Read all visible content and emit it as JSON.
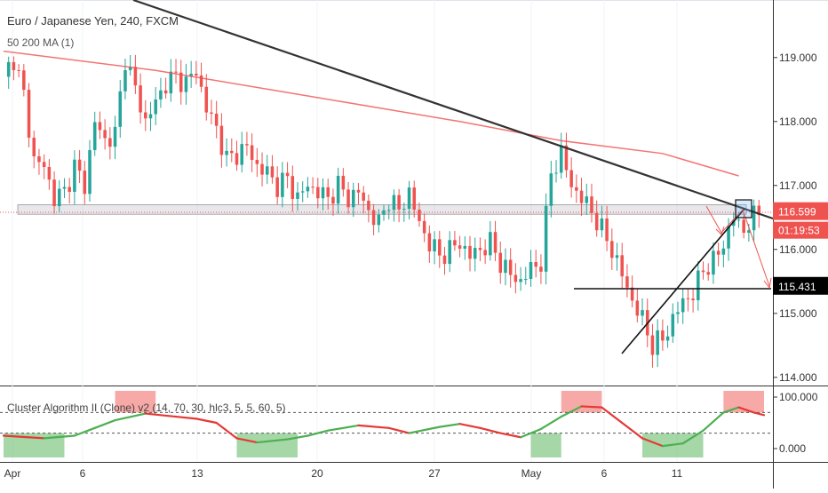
{
  "chart_data": {
    "type": "candlestick",
    "title": "Euro / Japanese Yen, 240, FXCM",
    "overlay_label": "50 200 MA (1)",
    "indicator_label": "Cluster Algorithm II (Clone) v2 (14, 70, 30, hlc3, 5, 5, 60, 5)",
    "y_ticks": [
      "119.000",
      "118.000",
      "117.000",
      "116.000",
      "115.000",
      "114.000"
    ],
    "y_range": [
      113.9,
      119.9
    ],
    "x_ticks": [
      "Apr",
      "6",
      "13",
      "20",
      "27",
      "May",
      "6",
      "11"
    ],
    "price_badges": [
      {
        "price": 116.599,
        "label": "116.599",
        "color": "#ef5350"
      },
      {
        "label": "01:19:53",
        "color": "#ef5350"
      },
      {
        "price": 115.431,
        "label": "115.431",
        "color": "#000000"
      }
    ],
    "indicator_y_ticks": [
      "100.000",
      "0.000"
    ],
    "indicator_levels": [
      70,
      30
    ],
    "colors": {
      "up": "#26a69a",
      "down": "#ef5350",
      "ma": "#ef5350",
      "trend": "#333333",
      "osc_up": "#4caf50",
      "osc_down": "#e53935"
    },
    "close_path": [
      [
        0,
        118.7
      ],
      [
        2,
        119.0
      ],
      [
        4,
        118.4
      ],
      [
        6,
        117.4
      ],
      [
        8,
        117.3
      ],
      [
        10,
        116.8
      ],
      [
        12,
        116.9
      ],
      [
        14,
        117.3
      ],
      [
        16,
        117.0
      ],
      [
        18,
        118.0
      ],
      [
        20,
        117.7
      ],
      [
        22,
        117.8
      ],
      [
        24,
        119.0
      ],
      [
        26,
        118.5
      ],
      [
        28,
        118.0
      ],
      [
        30,
        118.3
      ],
      [
        32,
        118.6
      ],
      [
        34,
        118.7
      ],
      [
        36,
        118.6
      ],
      [
        38,
        118.8
      ],
      [
        40,
        118.2
      ],
      [
        42,
        117.9
      ],
      [
        44,
        117.4
      ],
      [
        46,
        117.5
      ],
      [
        48,
        117.6
      ],
      [
        50,
        117.3
      ],
      [
        52,
        117.2
      ],
      [
        54,
        117.0
      ],
      [
        56,
        117.1
      ],
      [
        58,
        116.8
      ],
      [
        60,
        117.0
      ],
      [
        62,
        116.9
      ],
      [
        64,
        116.8
      ],
      [
        66,
        117.0
      ],
      [
        68,
        116.8
      ],
      [
        70,
        116.9
      ],
      [
        72,
        116.6
      ],
      [
        74,
        116.4
      ],
      [
        76,
        116.8
      ],
      [
        78,
        116.6
      ],
      [
        80,
        116.9
      ],
      [
        82,
        116.4
      ],
      [
        84,
        116.1
      ],
      [
        86,
        115.9
      ],
      [
        88,
        116.0
      ],
      [
        90,
        116.1
      ],
      [
        92,
        115.9
      ],
      [
        94,
        116.0
      ],
      [
        96,
        116.1
      ],
      [
        98,
        115.8
      ],
      [
        100,
        115.6
      ],
      [
        102,
        115.5
      ],
      [
        104,
        115.7
      ],
      [
        106,
        115.8
      ],
      [
        108,
        117.2
      ],
      [
        110,
        117.5
      ],
      [
        112,
        117.0
      ],
      [
        114,
        116.8
      ],
      [
        116,
        116.6
      ],
      [
        118,
        116.3
      ],
      [
        120,
        116.0
      ],
      [
        122,
        115.6
      ],
      [
        124,
        115.2
      ],
      [
        126,
        114.9
      ],
      [
        128,
        114.5
      ],
      [
        130,
        114.6
      ],
      [
        132,
        114.9
      ],
      [
        134,
        115.2
      ],
      [
        136,
        115.3
      ],
      [
        138,
        115.7
      ],
      [
        140,
        115.8
      ],
      [
        142,
        116.1
      ],
      [
        144,
        116.5
      ],
      [
        146,
        116.3
      ],
      [
        148,
        116.5
      ],
      [
        149,
        116.6
      ]
    ],
    "ma_path": [
      [
        0,
        119.1
      ],
      [
        30,
        118.8
      ],
      [
        60,
        118.4
      ],
      [
        90,
        118.0
      ],
      [
        110,
        117.7
      ],
      [
        130,
        117.5
      ],
      [
        145,
        117.15
      ]
    ],
    "osc_path": [
      [
        0,
        25
      ],
      [
        8,
        20
      ],
      [
        14,
        25
      ],
      [
        18,
        40
      ],
      [
        22,
        55
      ],
      [
        28,
        68
      ],
      [
        34,
        62
      ],
      [
        38,
        58
      ],
      [
        42,
        50
      ],
      [
        46,
        20
      ],
      [
        50,
        12
      ],
      [
        56,
        18
      ],
      [
        60,
        25
      ],
      [
        64,
        35
      ],
      [
        70,
        45
      ],
      [
        76,
        40
      ],
      [
        80,
        30
      ],
      [
        86,
        42
      ],
      [
        90,
        48
      ],
      [
        94,
        40
      ],
      [
        98,
        30
      ],
      [
        102,
        22
      ],
      [
        106,
        38
      ],
      [
        110,
        62
      ],
      [
        114,
        82
      ],
      [
        118,
        80
      ],
      [
        122,
        50
      ],
      [
        126,
        20
      ],
      [
        130,
        5
      ],
      [
        134,
        10
      ],
      [
        138,
        35
      ],
      [
        142,
        70
      ],
      [
        145,
        80
      ],
      [
        148,
        70
      ],
      [
        150,
        65
      ]
    ],
    "zones_low": [
      [
        0,
        12
      ],
      [
        46,
        58
      ],
      [
        104,
        110
      ],
      [
        126,
        138
      ]
    ],
    "zones_high": [
      [
        22,
        30
      ],
      [
        110,
        118
      ],
      [
        142,
        150
      ]
    ]
  }
}
